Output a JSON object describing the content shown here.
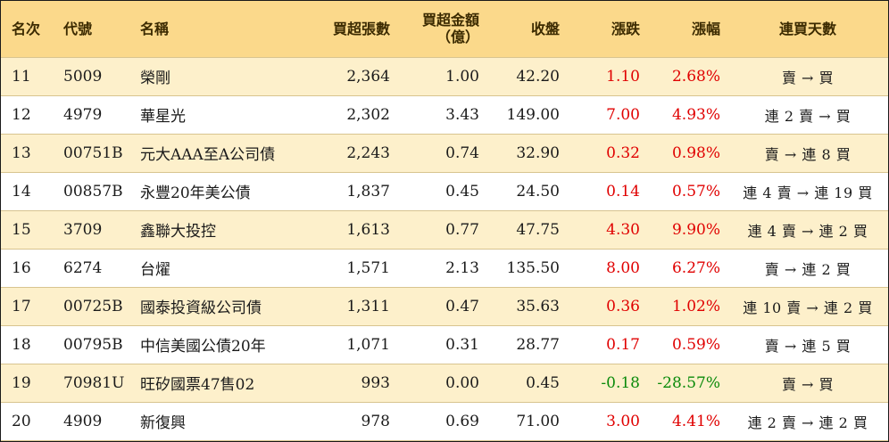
{
  "header": {
    "rank": "名次",
    "code": "代號",
    "name": "名稱",
    "net_buy_lots": "買超張數",
    "net_buy_amount_line1": "買超金額",
    "net_buy_amount_line2": "（億）",
    "close": "收盤",
    "change": "漲跌",
    "change_pct": "漲幅",
    "streak": "連買天數"
  },
  "rows": [
    {
      "rank": "11",
      "code": "5009",
      "name": "榮剛",
      "lots": "2,364",
      "amount": "1.00",
      "close": "42.20",
      "change": "1.10",
      "pct": "2.68%",
      "streak": "賣 → 買",
      "dir": "up"
    },
    {
      "rank": "12",
      "code": "4979",
      "name": "華星光",
      "lots": "2,302",
      "amount": "3.43",
      "close": "149.00",
      "change": "7.00",
      "pct": "4.93%",
      "streak": "連 2 賣 → 買",
      "dir": "up"
    },
    {
      "rank": "13",
      "code": "00751B",
      "name": "元大AAA至A公司債",
      "lots": "2,243",
      "amount": "0.74",
      "close": "32.90",
      "change": "0.32",
      "pct": "0.98%",
      "streak": "賣 → 連 8 買",
      "dir": "up"
    },
    {
      "rank": "14",
      "code": "00857B",
      "name": "永豐20年美公債",
      "lots": "1,837",
      "amount": "0.45",
      "close": "24.50",
      "change": "0.14",
      "pct": "0.57%",
      "streak": "連 4 賣 → 連 19 買",
      "dir": "up"
    },
    {
      "rank": "15",
      "code": "3709",
      "name": "鑫聯大投控",
      "lots": "1,613",
      "amount": "0.77",
      "close": "47.75",
      "change": "4.30",
      "pct": "9.90%",
      "streak": "連 4 賣 → 連 2 買",
      "dir": "up"
    },
    {
      "rank": "16",
      "code": "6274",
      "name": "台燿",
      "lots": "1,571",
      "amount": "2.13",
      "close": "135.50",
      "change": "8.00",
      "pct": "6.27%",
      "streak": "賣 → 連 2 買",
      "dir": "up"
    },
    {
      "rank": "17",
      "code": "00725B",
      "name": "國泰投資級公司債",
      "lots": "1,311",
      "amount": "0.47",
      "close": "35.63",
      "change": "0.36",
      "pct": "1.02%",
      "streak": "連 10 賣 → 連 2 買",
      "dir": "up"
    },
    {
      "rank": "18",
      "code": "00795B",
      "name": "中信美國公債20年",
      "lots": "1,071",
      "amount": "0.31",
      "close": "28.77",
      "change": "0.17",
      "pct": "0.59%",
      "streak": "賣 → 連 5 買",
      "dir": "up"
    },
    {
      "rank": "19",
      "code": "70981U",
      "name": "旺矽國票47售02",
      "lots": "993",
      "amount": "0.00",
      "close": "0.45",
      "change": "-0.18",
      "pct": "-28.57%",
      "streak": "賣 → 買",
      "dir": "down"
    },
    {
      "rank": "20",
      "code": "4909",
      "name": "新復興",
      "lots": "978",
      "amount": "0.69",
      "close": "71.00",
      "change": "3.00",
      "pct": "4.41%",
      "streak": "連 2 賣 → 連 2 買",
      "dir": "up"
    }
  ]
}
